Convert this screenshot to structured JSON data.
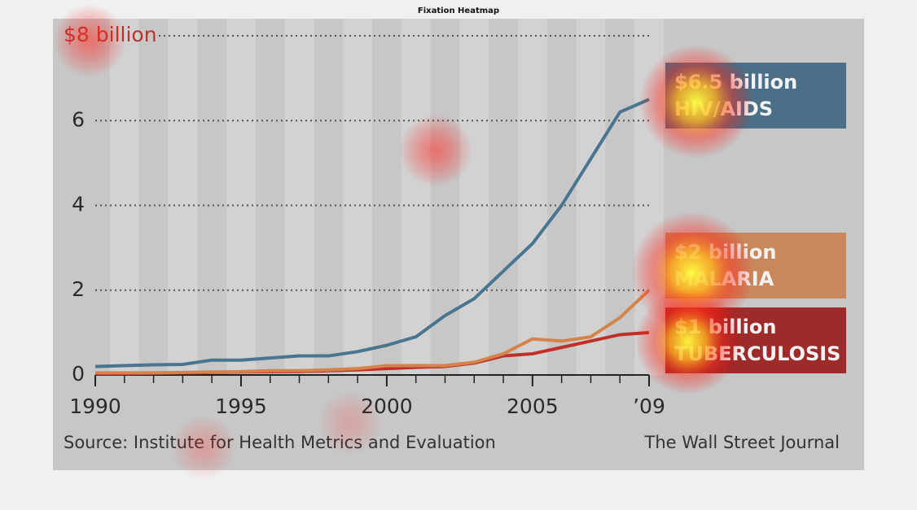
{
  "chart_data": {
    "type": "line",
    "title": "Fixation Heatmap",
    "x": [
      1990,
      1991,
      1992,
      1993,
      1994,
      1995,
      1996,
      1997,
      1998,
      1999,
      2000,
      2001,
      2002,
      2003,
      2004,
      2005,
      2006,
      2007,
      2008,
      2009
    ],
    "xlim": [
      1990,
      2009
    ],
    "xticks": [
      1990,
      1995,
      2000,
      2005,
      {
        "value": 2009,
        "label": "’09"
      }
    ],
    "ylim": [
      0,
      8
    ],
    "yticks": [
      0,
      2,
      4,
      6,
      {
        "value": 8,
        "label": "$8 billion"
      }
    ],
    "grid": true,
    "series": [
      {
        "name": "HIV/AIDS",
        "end_label": "$6.5 billion",
        "color": "#4a7590",
        "box_color": "#4b6f86",
        "values": [
          0.2,
          0.22,
          0.24,
          0.25,
          0.35,
          0.35,
          0.4,
          0.45,
          0.45,
          0.55,
          0.7,
          0.9,
          1.4,
          1.8,
          2.45,
          3.1,
          4.0,
          5.1,
          6.2,
          6.5
        ]
      },
      {
        "name": "MALARIA",
        "end_label": "$2 billion",
        "color": "#d4834a",
        "box_color": "#c9875c",
        "values": [
          0.05,
          0.05,
          0.05,
          0.06,
          0.07,
          0.08,
          0.1,
          0.1,
          0.12,
          0.15,
          0.22,
          0.22,
          0.22,
          0.3,
          0.5,
          0.85,
          0.8,
          0.9,
          1.35,
          2.0
        ]
      },
      {
        "name": "TUBERCULOSIS",
        "end_label": "$1 billion",
        "color": "#c0302a",
        "box_color": "#9e2a2a",
        "values": [
          0.03,
          0.03,
          0.04,
          0.05,
          0.06,
          0.07,
          0.08,
          0.08,
          0.1,
          0.12,
          0.15,
          0.18,
          0.2,
          0.28,
          0.45,
          0.5,
          0.65,
          0.8,
          0.95,
          1.0
        ]
      }
    ],
    "source": "Source: Institute for Health Metrics and Evaluation",
    "credit": "The Wall Street Journal"
  }
}
